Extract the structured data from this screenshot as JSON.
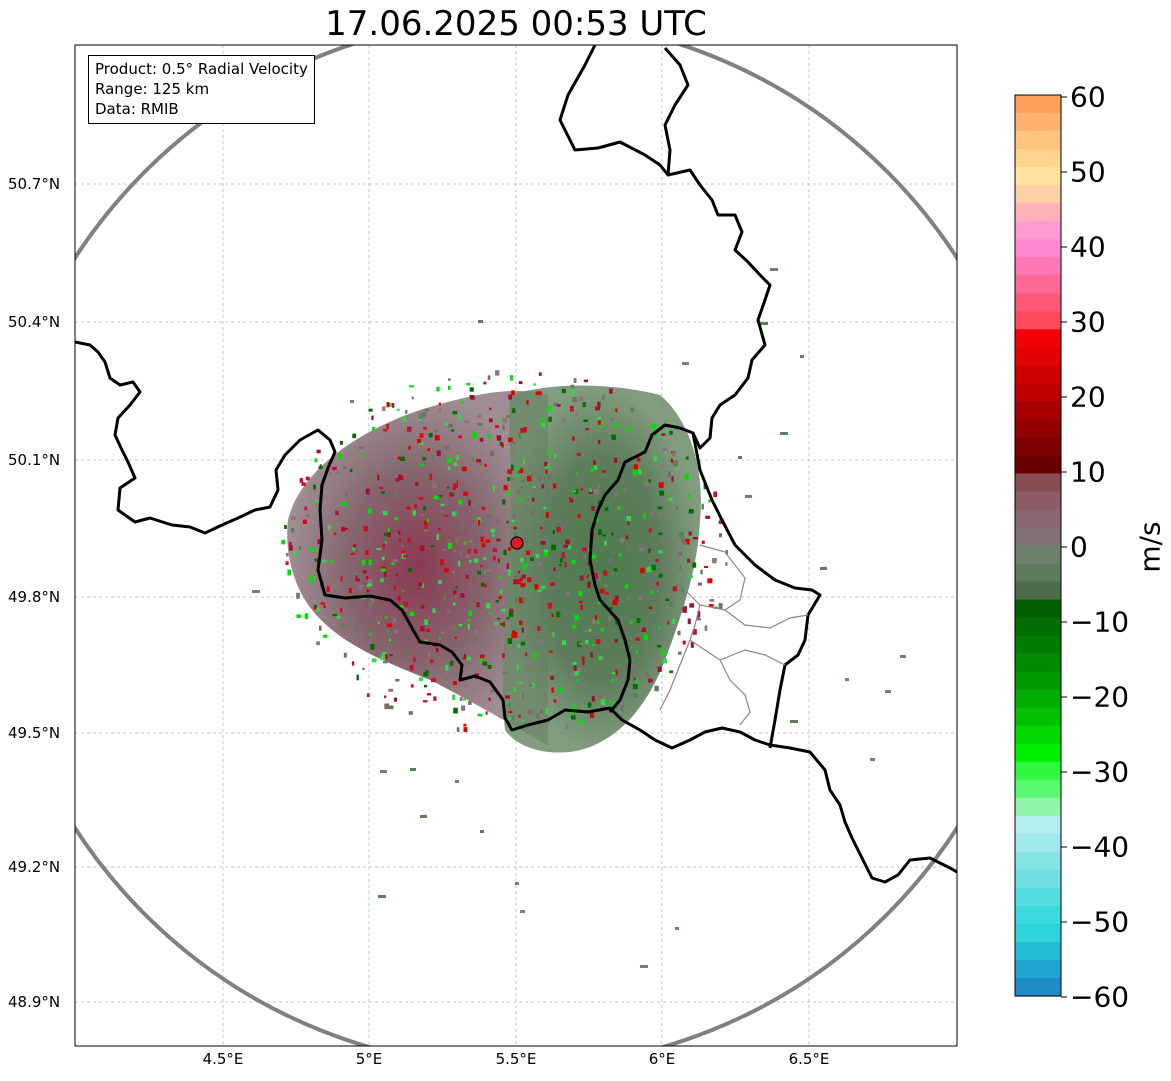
{
  "title": "17.06.2025 00:53 UTC",
  "info_box": {
    "product": "Product: 0.5° Radial Velocity",
    "range": "Range: 125 km",
    "data": "Data: RMIB"
  },
  "lat_ticks": [
    "50.7°N",
    "50.4°N",
    "50.1°N",
    "49.8°N",
    "49.5°N",
    "49.2°N",
    "48.9°N"
  ],
  "lon_ticks": [
    "4.5°E",
    "5°E",
    "5.5°E",
    "6°E",
    "6.5°E"
  ],
  "colorbar": {
    "unit": "m/s",
    "min": -60,
    "max": 60,
    "ticks": [
      "60",
      "50",
      "40",
      "30",
      "20",
      "10",
      "0",
      "−10",
      "−20",
      "−30",
      "−40",
      "−50",
      "−60"
    ]
  },
  "radar_site": {
    "lat": 49.92,
    "lon": 5.5
  },
  "range_ring_km": 125,
  "colors": {
    "range_ring": "#808080",
    "border": "#000000",
    "site_marker": "#e0191e",
    "inbound_green": "#5e7d5c",
    "outbound_mauve": "#856a72"
  }
}
